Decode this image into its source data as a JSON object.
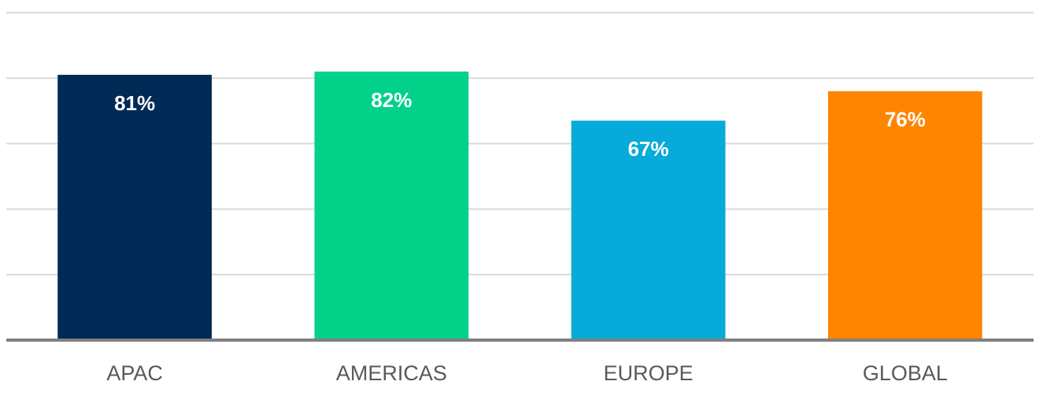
{
  "chart_data": {
    "type": "bar",
    "categories": [
      "APAC",
      "AMERICAS",
      "EUROPE",
      "GLOBAL"
    ],
    "values": [
      81,
      82,
      67,
      76
    ],
    "value_labels": [
      "81%",
      "82%",
      "67%",
      "76%"
    ],
    "colors": [
      "#012a56",
      "#02d18a",
      "#07aad8",
      "#ff8400"
    ],
    "ylim": [
      0,
      100
    ],
    "yticks": [
      0,
      20,
      40,
      60,
      80,
      100
    ],
    "grid": true
  }
}
